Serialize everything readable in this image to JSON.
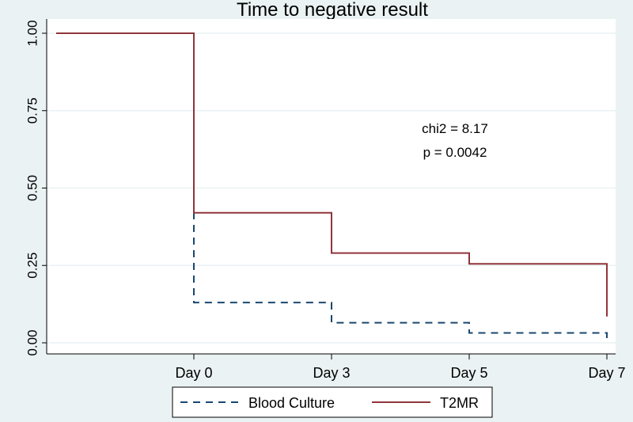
{
  "chart_data": {
    "type": "line",
    "title": "Time to negative result",
    "xlabel": "",
    "ylabel": "",
    "step": true,
    "x_categories": [
      "",
      "Day 0",
      "Day 3",
      "Day 5",
      "Day 7"
    ],
    "x_tick_labels": [
      "Day 0",
      "Day 3",
      "Day 5",
      "Day 7"
    ],
    "y_ticks": [
      "0.00",
      "0.25",
      "0.50",
      "0.75",
      "1.00"
    ],
    "ylim": [
      0,
      1
    ],
    "grid": true,
    "legend_position": "bottom",
    "annotation": {
      "line1": "chi2 = 8.17",
      "line2": "p = 0.0042"
    },
    "series": [
      {
        "name": "Blood Culture",
        "color": "#1a476f",
        "dash": "dashed",
        "steps": [
          {
            "x": "",
            "y": 1.0
          },
          {
            "x": "Day 0",
            "y": 0.13
          },
          {
            "x": "Day 3",
            "y": 0.065
          },
          {
            "x": "Day 5",
            "y": 0.032
          },
          {
            "x": "Day 7",
            "y": 0.0
          }
        ]
      },
      {
        "name": "T2MR",
        "color": "#90353b",
        "dash": "solid",
        "steps": [
          {
            "x": "",
            "y": 1.0
          },
          {
            "x": "Day 0",
            "y": 0.42
          },
          {
            "x": "Day 3",
            "y": 0.29
          },
          {
            "x": "Day 5",
            "y": 0.255
          },
          {
            "x": "Day 7",
            "y": 0.085
          }
        ]
      }
    ]
  }
}
